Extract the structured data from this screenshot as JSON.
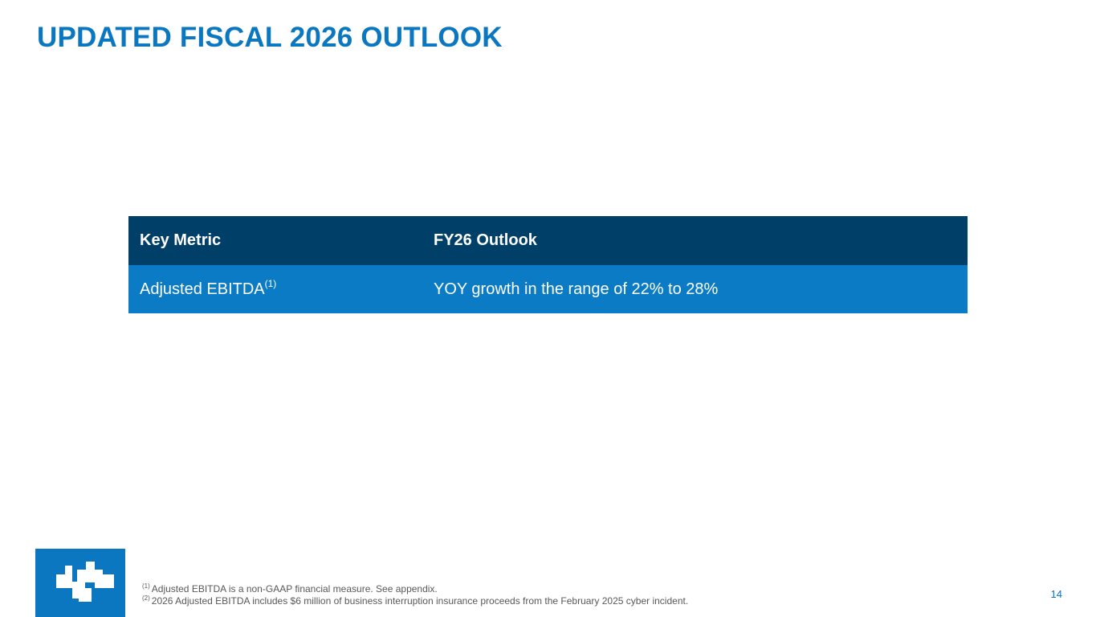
{
  "slide": {
    "title": "UPDATED FISCAL 2026 OUTLOOK",
    "page_number": "14"
  },
  "table": {
    "headers": [
      "Key Metric",
      "FY26 Outlook"
    ],
    "rows": [
      {
        "metric": "Adjusted EBITDA",
        "metric_note_marker": "(1)",
        "outlook": "YOY growth in the range of 22% to 28%"
      }
    ]
  },
  "footnotes": [
    {
      "marker": "(1)",
      "text": "Adjusted EBITDA is a non-GAAP financial measure. See appendix."
    },
    {
      "marker": "(2)",
      "text": "2026 Adjusted EBITDA includes $6 million of business interruption insurance proceeds from the February 2025 cyber incident."
    }
  ],
  "logo": {
    "icon": "company-logo-icon"
  },
  "colors": {
    "title_blue": "#0A77C0",
    "header_navy": "#003F68",
    "row_blue": "#0A7BC4",
    "footnote_gray": "#595959"
  }
}
